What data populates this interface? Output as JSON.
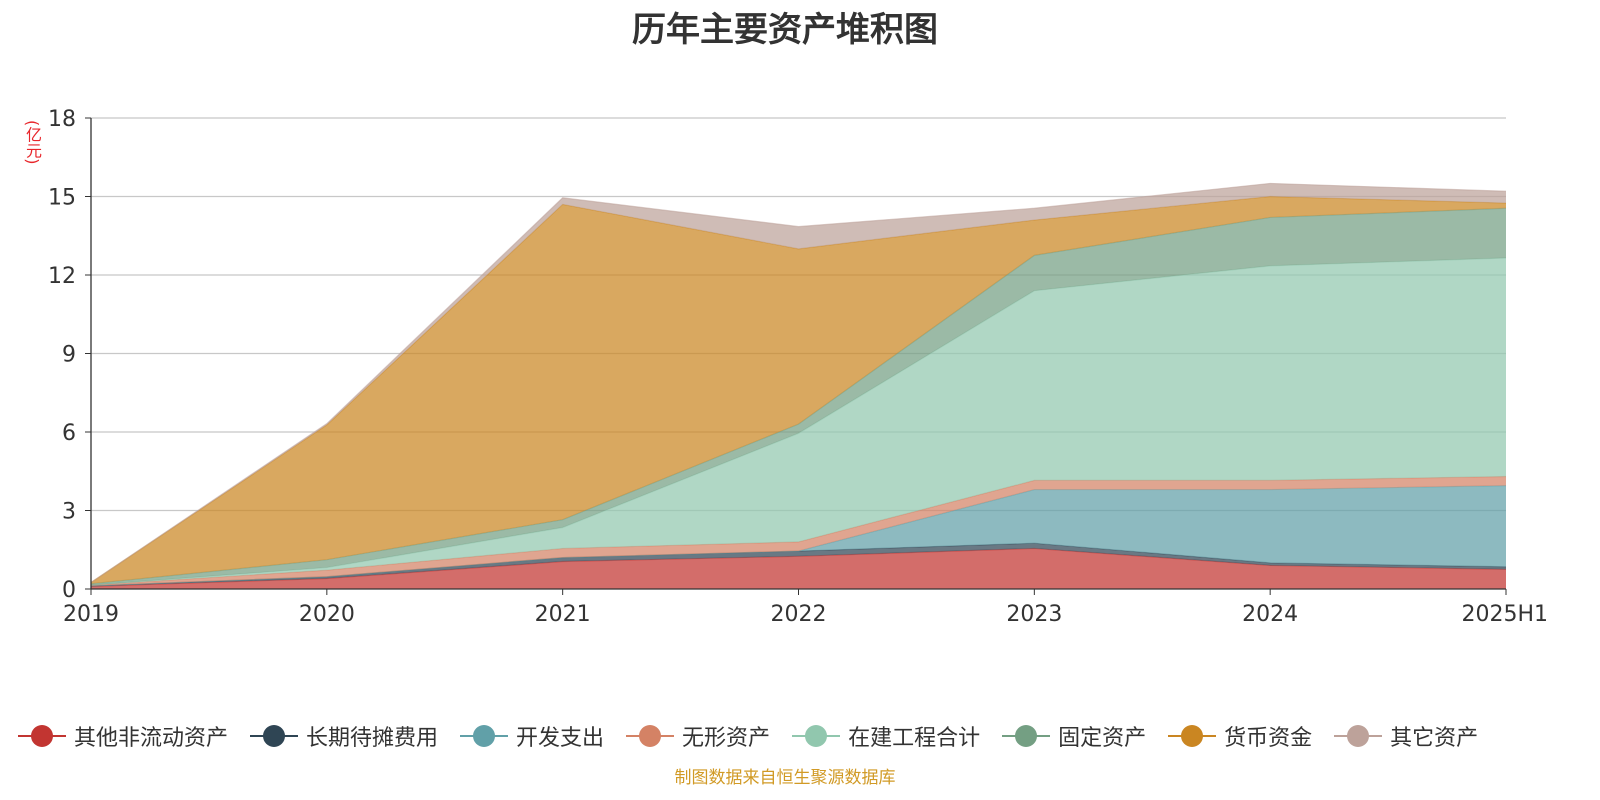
{
  "title": "历年主要资产堆积图",
  "source_note": "制图数据来自恒生聚源数据库",
  "chart_data": {
    "type": "area",
    "stacked": true,
    "title": "历年主要资产堆积图",
    "unit_label": "(亿元)",
    "categories": [
      "2019",
      "2020",
      "2021",
      "2022",
      "2023",
      "2024",
      "2025H1"
    ],
    "ylim": [
      0,
      18
    ],
    "yticks": [
      0,
      3,
      6,
      9,
      12,
      15,
      18
    ],
    "grid": true,
    "legend_position": "bottom",
    "series": [
      {
        "name": "其他非流动资产",
        "color": "#c23531",
        "values": [
          0.1,
          0.4,
          1.05,
          1.25,
          1.55,
          0.9,
          0.75
        ]
      },
      {
        "name": "长期待摊费用",
        "color": "#2f4554",
        "values": [
          0.02,
          0.07,
          0.15,
          0.2,
          0.2,
          0.1,
          0.1
        ]
      },
      {
        "name": "开发支出",
        "color": "#61a0a8",
        "values": [
          0.0,
          0.0,
          0.0,
          0.0,
          2.05,
          2.8,
          3.1
        ]
      },
      {
        "name": "无形资产",
        "color": "#d48265",
        "values": [
          0.03,
          0.25,
          0.35,
          0.35,
          0.35,
          0.35,
          0.35
        ]
      },
      {
        "name": "在建工程合计",
        "color": "#91c7ae",
        "values": [
          0.0,
          0.1,
          0.8,
          4.15,
          7.25,
          8.2,
          8.35
        ]
      },
      {
        "name": "固定资产",
        "color": "#749f83",
        "values": [
          0.05,
          0.3,
          0.3,
          0.35,
          1.35,
          1.85,
          1.9
        ]
      },
      {
        "name": "货币资金",
        "color": "#ca8622",
        "values": [
          0.05,
          5.15,
          12.05,
          6.7,
          1.35,
          0.8,
          0.2
        ]
      },
      {
        "name": "其它资产",
        "color": "#bda29a",
        "values": [
          0.0,
          0.05,
          0.25,
          0.85,
          0.45,
          0.5,
          0.45
        ]
      }
    ]
  }
}
